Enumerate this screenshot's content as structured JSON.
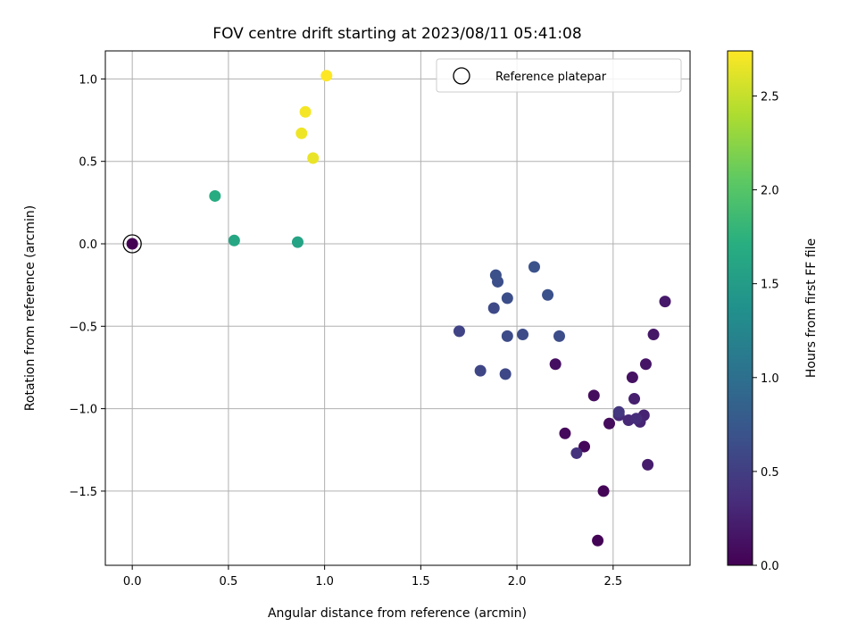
{
  "chart_data": {
    "type": "scatter",
    "title": "FOV centre drift starting at 2023/08/11 05:41:08",
    "xlabel": "Angular distance from reference (arcmin)",
    "ylabel": "Rotation from reference (arcmin)",
    "xlim": [
      -0.14,
      2.9
    ],
    "ylim": [
      -1.95,
      1.17
    ],
    "xticks": [
      "0.0",
      "0.5",
      "1.0",
      "1.5",
      "2.0",
      "2.5"
    ],
    "yticks": [
      "1.0",
      "0.5",
      "0.0",
      "−0.5",
      "−1.0",
      "−1.5"
    ],
    "grid": true,
    "legend": {
      "position": "top-right",
      "entries": [
        "Reference platepar"
      ]
    },
    "colorbar": {
      "label": "Hours from first FF file",
      "range": [
        0,
        2.74
      ],
      "ticks": [
        "0.0",
        "0.5",
        "1.0",
        "1.5",
        "2.0",
        "2.5"
      ],
      "colormap": "viridis"
    },
    "reference_point": {
      "x": 0.0,
      "y": 0.0
    },
    "points": [
      {
        "x": 0.0,
        "y": 0.0,
        "c": 0.0
      },
      {
        "x": 2.42,
        "y": -1.8,
        "c": 0.02
      },
      {
        "x": 2.45,
        "y": -1.5,
        "c": 0.03
      },
      {
        "x": 2.35,
        "y": -1.23,
        "c": 0.05
      },
      {
        "x": 2.25,
        "y": -1.15,
        "c": 0.06
      },
      {
        "x": 2.48,
        "y": -1.09,
        "c": 0.08
      },
      {
        "x": 2.4,
        "y": -0.92,
        "c": 0.09
      },
      {
        "x": 2.2,
        "y": -0.73,
        "c": 0.11
      },
      {
        "x": 2.6,
        "y": -0.81,
        "c": 0.13
      },
      {
        "x": 2.67,
        "y": -0.73,
        "c": 0.15
      },
      {
        "x": 2.71,
        "y": -0.55,
        "c": 0.17
      },
      {
        "x": 2.77,
        "y": -0.35,
        "c": 0.19
      },
      {
        "x": 2.68,
        "y": -1.34,
        "c": 0.22
      },
      {
        "x": 2.61,
        "y": -0.94,
        "c": 0.24
      },
      {
        "x": 2.66,
        "y": -1.04,
        "c": 0.26
      },
      {
        "x": 2.64,
        "y": -1.08,
        "c": 0.28
      },
      {
        "x": 2.58,
        "y": -1.07,
        "c": 0.31
      },
      {
        "x": 2.53,
        "y": -1.04,
        "c": 0.33
      },
      {
        "x": 2.62,
        "y": -1.06,
        "c": 0.35
      },
      {
        "x": 2.31,
        "y": -1.27,
        "c": 0.4
      },
      {
        "x": 2.53,
        "y": -1.02,
        "c": 0.43
      },
      {
        "x": 1.7,
        "y": -0.53,
        "c": 0.55
      },
      {
        "x": 1.81,
        "y": -0.77,
        "c": 0.57
      },
      {
        "x": 1.94,
        "y": -0.79,
        "c": 0.59
      },
      {
        "x": 1.88,
        "y": -0.39,
        "c": 0.61
      },
      {
        "x": 1.95,
        "y": -0.56,
        "c": 0.62
      },
      {
        "x": 2.03,
        "y": -0.55,
        "c": 0.63
      },
      {
        "x": 2.22,
        "y": -0.56,
        "c": 0.64
      },
      {
        "x": 1.95,
        "y": -0.33,
        "c": 0.65
      },
      {
        "x": 1.9,
        "y": -0.23,
        "c": 0.66
      },
      {
        "x": 1.89,
        "y": -0.19,
        "c": 0.67
      },
      {
        "x": 2.16,
        "y": -0.31,
        "c": 0.68
      },
      {
        "x": 2.09,
        "y": -0.14,
        "c": 0.69
      },
      {
        "x": 0.86,
        "y": 0.01,
        "c": 1.58
      },
      {
        "x": 0.53,
        "y": 0.02,
        "c": 1.62
      },
      {
        "x": 0.43,
        "y": 0.29,
        "c": 1.68
      },
      {
        "x": 0.94,
        "y": 0.52,
        "c": 2.66
      },
      {
        "x": 0.88,
        "y": 0.67,
        "c": 2.68
      },
      {
        "x": 0.9,
        "y": 0.8,
        "c": 2.7
      },
      {
        "x": 1.01,
        "y": 1.02,
        "c": 2.74
      }
    ]
  }
}
